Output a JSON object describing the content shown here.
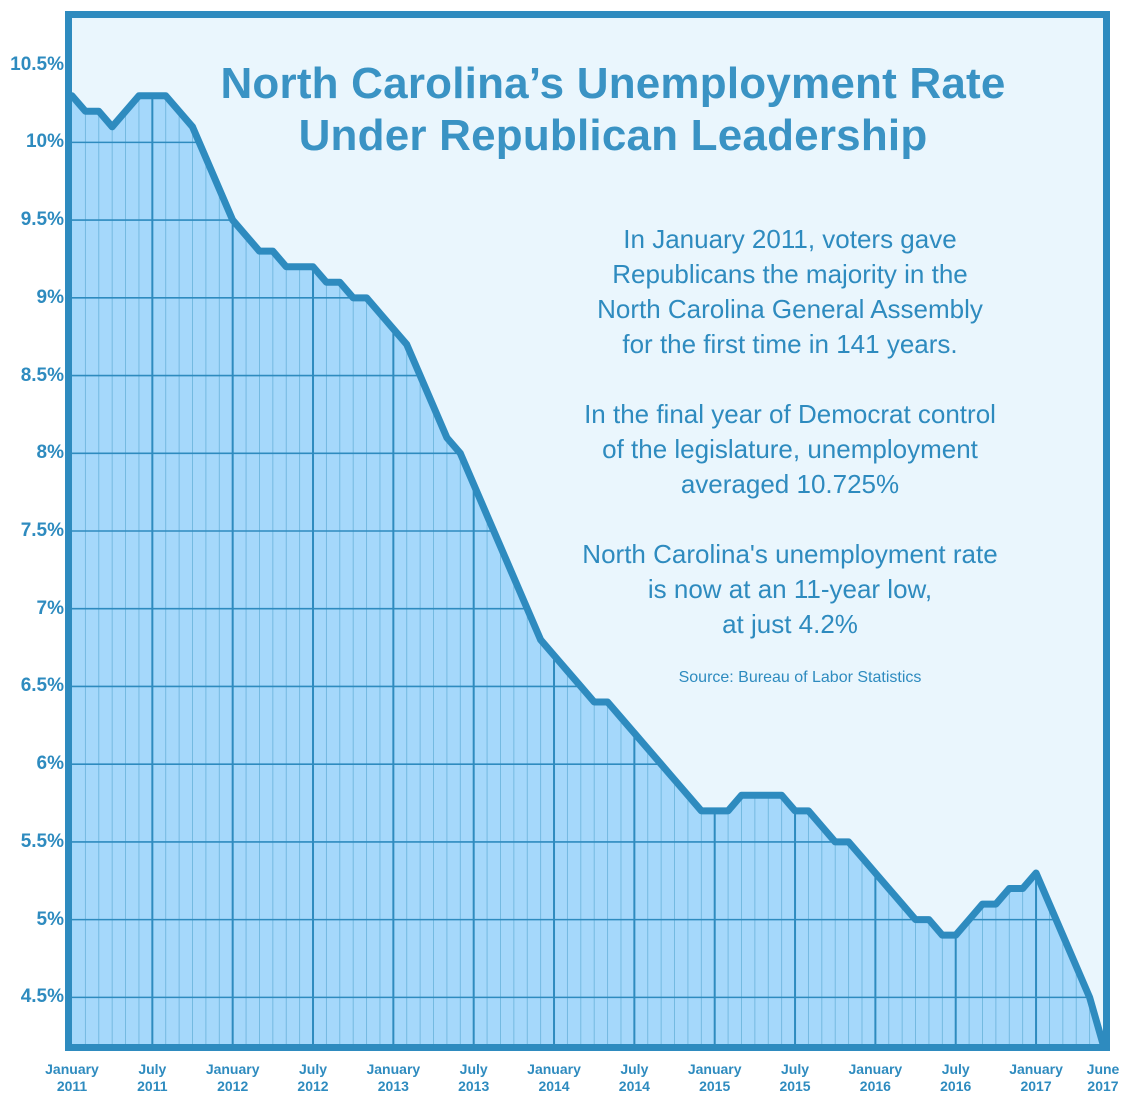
{
  "chart_data": {
    "type": "area",
    "title": [
      "North Carolina’s Unemployment Rate",
      "Under Republican Leadership"
    ],
    "xlabel": "",
    "ylabel": "",
    "ylim": [
      4.2,
      10.8
    ],
    "grid": true,
    "y_ticks": [
      {
        "value": 10.5,
        "label": "10.5%"
      },
      {
        "value": 10,
        "label": "10%"
      },
      {
        "value": 9.5,
        "label": "9.5%"
      },
      {
        "value": 9,
        "label": "9%"
      },
      {
        "value": 8.5,
        "label": "8.5%"
      },
      {
        "value": 8,
        "label": "8%"
      },
      {
        "value": 7.5,
        "label": "7.5%"
      },
      {
        "value": 7,
        "label": "7%"
      },
      {
        "value": 6.5,
        "label": "6.5%"
      },
      {
        "value": 6,
        "label": "6%"
      },
      {
        "value": 5.5,
        "label": "5.5%"
      },
      {
        "value": 5,
        "label": "5%"
      },
      {
        "value": 4.5,
        "label": "4.5%"
      }
    ],
    "x_ticks": [
      {
        "index": 0,
        "month": "January",
        "year": "2011"
      },
      {
        "index": 6,
        "month": "July",
        "year": "2011"
      },
      {
        "index": 12,
        "month": "January",
        "year": "2012"
      },
      {
        "index": 18,
        "month": "July",
        "year": "2012"
      },
      {
        "index": 24,
        "month": "January",
        "year": "2013"
      },
      {
        "index": 30,
        "month": "July",
        "year": "2013"
      },
      {
        "index": 36,
        "month": "January",
        "year": "2014"
      },
      {
        "index": 42,
        "month": "July",
        "year": "2014"
      },
      {
        "index": 48,
        "month": "January",
        "year": "2015"
      },
      {
        "index": 54,
        "month": "July",
        "year": "2015"
      },
      {
        "index": 60,
        "month": "January",
        "year": "2016"
      },
      {
        "index": 66,
        "month": "July",
        "year": "2016"
      },
      {
        "index": 72,
        "month": "January",
        "year": "2017"
      },
      {
        "index": 77,
        "month": "June",
        "year": "2017"
      }
    ],
    "series": [
      {
        "name": "Unemployment rate",
        "start": "January 2011",
        "end": "June 2017",
        "values": [
          10.3,
          10.2,
          10.2,
          10.1,
          10.2,
          10.3,
          10.3,
          10.3,
          10.2,
          10.1,
          9.9,
          9.7,
          9.5,
          9.4,
          9.3,
          9.3,
          9.2,
          9.2,
          9.2,
          9.1,
          9.1,
          9.0,
          9.0,
          8.9,
          8.8,
          8.7,
          8.5,
          8.3,
          8.1,
          8.0,
          7.8,
          7.6,
          7.4,
          7.2,
          7.0,
          6.8,
          6.7,
          6.6,
          6.5,
          6.4,
          6.4,
          6.3,
          6.2,
          6.1,
          6.0,
          5.9,
          5.8,
          5.7,
          5.7,
          5.7,
          5.8,
          5.8,
          5.8,
          5.8,
          5.7,
          5.7,
          5.6,
          5.5,
          5.5,
          5.4,
          5.3,
          5.2,
          5.1,
          5.0,
          5.0,
          4.9,
          4.9,
          5.0,
          5.1,
          5.1,
          5.2,
          5.2,
          5.3,
          5.1,
          4.9,
          4.7,
          4.5,
          4.2
        ]
      }
    ],
    "annotations": [
      [
        "In January 2011, voters gave",
        "Republicans the majority in the",
        "North Carolina General Assembly",
        "for the first time in 141 years."
      ],
      [
        "In the final year of Democrat control",
        "of the legislature, unemployment",
        "averaged 10.725%"
      ],
      [
        "North Carolina's unemployment rate",
        "is now at an 11-year low,",
        "at just 4.2%"
      ]
    ],
    "source": "Source: Bureau of Labor Statistics",
    "colors": {
      "frame": "#2e8bbf",
      "line": "#2e8bbf",
      "fill": "#a5d8fb",
      "background": "#eaf6fd",
      "grid": "#2e8bbf",
      "minor_grid": "#6fb6de",
      "text": "#2e8bbf"
    }
  }
}
